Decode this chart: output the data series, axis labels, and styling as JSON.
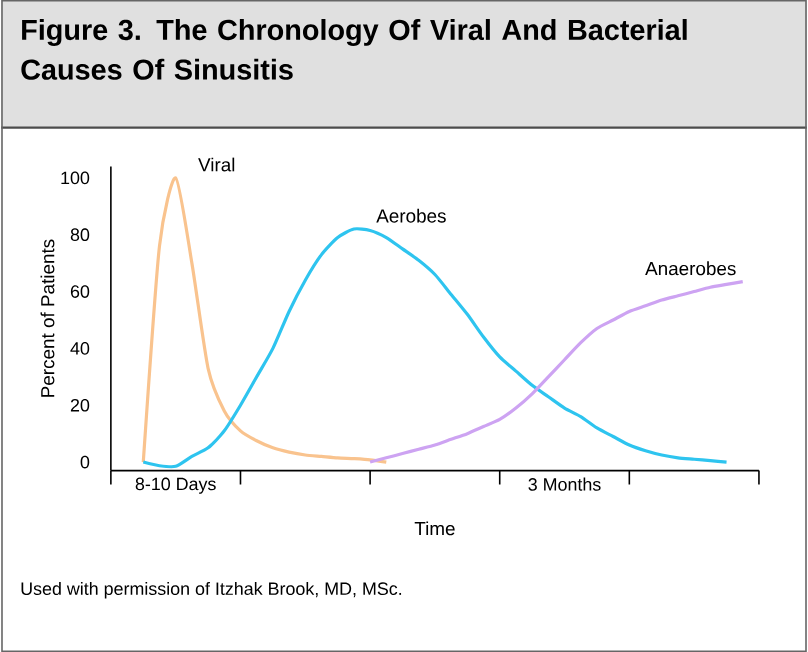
{
  "chart_data": {
    "type": "line",
    "title": "Figure 3. The Chronology Of Viral And Bacterial Causes Of Sinusitis",
    "xlabel": "Time",
    "ylabel": "Percent of Patients",
    "categories": [
      null,
      null,
      null,
      null,
      "8-10 Days",
      null,
      null,
      null,
      null,
      null,
      null,
      null,
      null,
      null,
      null,
      null,
      null,
      null,
      null,
      null,
      null,
      null,
      null,
      null,
      null,
      null,
      null,
      null,
      "3 Months",
      null,
      null,
      null,
      null,
      null,
      null,
      null,
      null,
      null,
      null,
      null,
      null
    ],
    "ylim": [
      -3,
      104
    ],
    "yticks": [
      0,
      20,
      40,
      60,
      80,
      100
    ],
    "marker": "none",
    "grid": false,
    "legend": false,
    "annotations": [
      "Used with permission of Itzhak Brook, MD, MSc."
    ],
    "series": [
      {
        "name": "Viral",
        "color": "#f9c38e",
        "values": [
          null,
          null,
          0,
          76,
          100,
          70,
          33,
          18,
          11,
          7.5,
          5,
          3.5,
          2.5,
          2,
          1.5,
          1.2,
          0.8,
          0,
          null,
          null,
          null,
          null,
          null,
          null,
          null,
          null,
          null,
          null,
          null,
          null,
          null,
          null,
          null,
          null,
          null,
          null,
          null,
          null,
          null,
          null,
          null
        ]
      },
      {
        "name": "Aerobes",
        "color": "#2ec4ef",
        "values": [
          null,
          null,
          0,
          -1.3,
          -1.5,
          2,
          5,
          11,
          20,
          30,
          40,
          53,
          64,
          73,
          79,
          82,
          81.5,
          79,
          75,
          71,
          66,
          59,
          52,
          44,
          37,
          32,
          27,
          23,
          19,
          16,
          12,
          9,
          6,
          4,
          2.5,
          1.5,
          1,
          0.5,
          0,
          null,
          null
        ]
      },
      {
        "name": "Anaerobes",
        "color": "#cda3f2",
        "values": [
          null,
          null,
          null,
          null,
          null,
          null,
          null,
          null,
          null,
          null,
          null,
          null,
          null,
          null,
          null,
          null,
          0,
          1.5,
          3,
          4.5,
          6,
          8,
          10,
          12.5,
          15,
          19,
          24,
          30,
          36,
          42,
          47,
          50,
          53,
          55,
          57,
          58.5,
          60,
          61.5,
          62.5,
          63.5,
          null
        ]
      }
    ]
  }
}
